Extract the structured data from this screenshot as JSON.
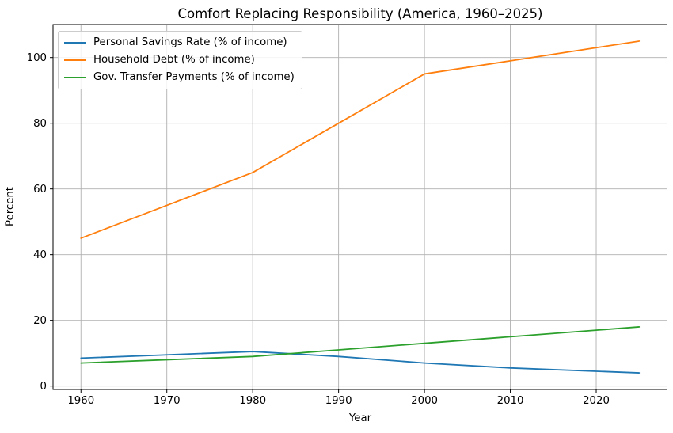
{
  "chart_data": {
    "type": "line",
    "title": "Comfort Replacing Responsibility (America, 1960–2025)",
    "xlabel": "Year",
    "ylabel": "Percent",
    "x": [
      1960,
      1970,
      1980,
      1990,
      2000,
      2010,
      2020,
      2025
    ],
    "series": [
      {
        "name": "Personal Savings Rate (% of income)",
        "color": "#1f77b4",
        "values": [
          8.5,
          9.5,
          10.5,
          9,
          7,
          5.5,
          4.5,
          4
        ]
      },
      {
        "name": "Household Debt (% of income)",
        "color": "#ff7f0e",
        "values": [
          45,
          55,
          65,
          80,
          95,
          99,
          103,
          105
        ]
      },
      {
        "name": "Gov. Transfer Payments (% of income)",
        "color": "#2ca02c",
        "values": [
          7,
          8,
          9,
          11,
          13,
          15,
          17,
          18
        ]
      }
    ],
    "xticks": [
      1960,
      1970,
      1980,
      1990,
      2000,
      2010,
      2020
    ],
    "yticks": [
      0,
      20,
      40,
      60,
      80,
      100
    ],
    "xlim": [
      1956.75,
      2028.25
    ],
    "ylim": [
      -1.05,
      110.05
    ],
    "grid": true,
    "grid_color": "#b0b0b0",
    "spine_color": "#000000",
    "legend_position": "upper left"
  }
}
